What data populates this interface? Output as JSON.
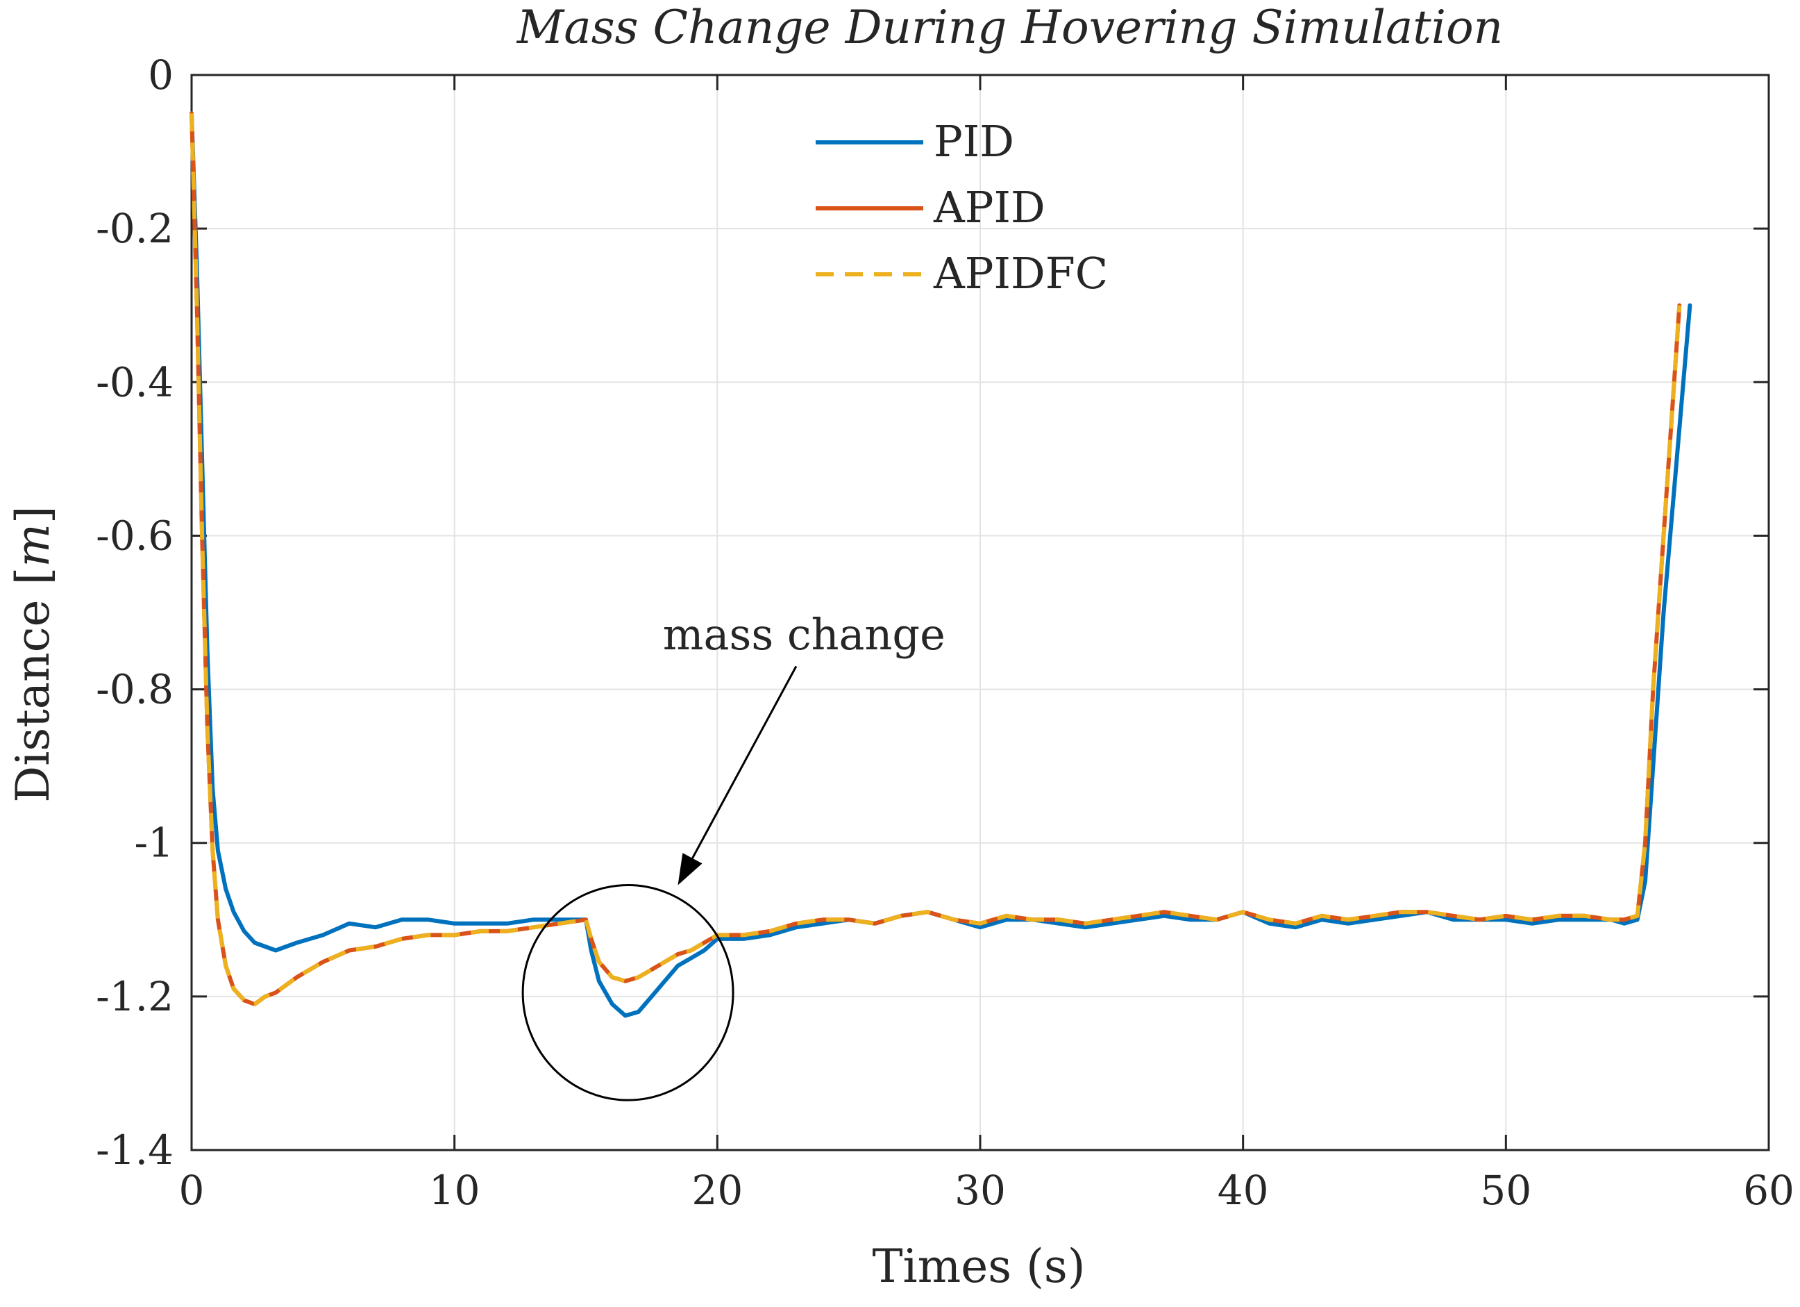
{
  "chart_data": {
    "type": "line",
    "title": "Mass Change During Hovering Simulation",
    "xlabel": "Times (s)",
    "ylabel": "Distance [m]",
    "ylabel_parts": {
      "prefix": "Distance [",
      "unit": "m",
      "suffix": "]"
    },
    "xlim": [
      0,
      60
    ],
    "ylim": [
      -1.4,
      0
    ],
    "xticks": [
      0,
      10,
      20,
      30,
      40,
      50,
      60
    ],
    "xtick_labels": [
      "0",
      "10",
      "20",
      "30",
      "40",
      "50",
      "60"
    ],
    "yticks": [
      0,
      -0.2,
      -0.4,
      -0.6,
      -0.8,
      -1,
      -1.2,
      -1.4
    ],
    "ytick_labels": [
      "0",
      "-0.2",
      "-0.4",
      "-0.6",
      "-0.8",
      "-1",
      "-1.2",
      "-1.4"
    ],
    "grid": true,
    "legend_position": "top-center",
    "series": [
      {
        "name": "PID",
        "color": "#0072BD",
        "dash": "solid",
        "x": [
          0,
          0.2,
          0.4,
          0.6,
          0.8,
          1.0,
          1.3,
          1.6,
          2.0,
          2.4,
          2.8,
          3.2,
          3.6,
          4.0,
          5.0,
          6.0,
          7.0,
          8.0,
          9.0,
          10.0,
          11.0,
          12.0,
          13.0,
          14.0,
          15.0,
          15.2,
          15.5,
          16.0,
          16.5,
          17.0,
          17.5,
          18.0,
          18.5,
          19.0,
          19.5,
          20.0,
          21,
          22,
          23,
          24,
          25,
          26,
          27,
          28,
          29,
          30,
          31,
          32,
          33,
          34,
          35,
          36,
          37,
          38,
          39,
          40,
          41,
          42,
          43,
          44,
          45,
          46,
          47,
          48,
          49,
          50,
          51,
          52,
          53,
          54,
          54.5,
          55.0,
          55.3,
          55.6,
          56.0,
          56.5,
          57.0
        ],
        "y": [
          -0.05,
          -0.25,
          -0.5,
          -0.75,
          -0.93,
          -1.01,
          -1.06,
          -1.09,
          -1.115,
          -1.13,
          -1.135,
          -1.14,
          -1.135,
          -1.13,
          -1.12,
          -1.105,
          -1.11,
          -1.1,
          -1.1,
          -1.105,
          -1.105,
          -1.105,
          -1.1,
          -1.1,
          -1.1,
          -1.14,
          -1.18,
          -1.21,
          -1.225,
          -1.22,
          -1.2,
          -1.18,
          -1.16,
          -1.15,
          -1.14,
          -1.125,
          -1.125,
          -1.12,
          -1.11,
          -1.105,
          -1.1,
          -1.105,
          -1.095,
          -1.09,
          -1.1,
          -1.11,
          -1.1,
          -1.1,
          -1.105,
          -1.11,
          -1.105,
          -1.1,
          -1.095,
          -1.1,
          -1.1,
          -1.09,
          -1.105,
          -1.11,
          -1.1,
          -1.105,
          -1.1,
          -1.095,
          -1.09,
          -1.1,
          -1.1,
          -1.1,
          -1.105,
          -1.1,
          -1.1,
          -1.1,
          -1.105,
          -1.1,
          -1.05,
          -0.9,
          -0.7,
          -0.5,
          -0.3
        ]
      },
      {
        "name": "APID",
        "color": "#D95319",
        "dash": "solid",
        "x": [
          0,
          0.2,
          0.4,
          0.6,
          0.8,
          1.0,
          1.3,
          1.6,
          2.0,
          2.4,
          2.8,
          3.2,
          3.6,
          4.0,
          5.0,
          6.0,
          7.0,
          8.0,
          9.0,
          10.0,
          11.0,
          12.0,
          13.0,
          14.0,
          15.0,
          15.2,
          15.5,
          16.0,
          16.5,
          17.0,
          17.5,
          18.0,
          18.5,
          19.0,
          19.5,
          20.0,
          21,
          22,
          23,
          24,
          25,
          26,
          27,
          28,
          29,
          30,
          31,
          32,
          33,
          34,
          35,
          36,
          37,
          38,
          39,
          40,
          41,
          42,
          43,
          44,
          45,
          46,
          47,
          48,
          49,
          50,
          51,
          52,
          53,
          54,
          54.5,
          55.0,
          55.3,
          55.6,
          56.0,
          56.3,
          56.6
        ],
        "y": [
          -0.05,
          -0.3,
          -0.6,
          -0.85,
          -1.01,
          -1.1,
          -1.16,
          -1.19,
          -1.205,
          -1.21,
          -1.2,
          -1.195,
          -1.185,
          -1.175,
          -1.155,
          -1.14,
          -1.135,
          -1.125,
          -1.12,
          -1.12,
          -1.115,
          -1.115,
          -1.11,
          -1.105,
          -1.1,
          -1.125,
          -1.155,
          -1.175,
          -1.18,
          -1.175,
          -1.165,
          -1.155,
          -1.145,
          -1.14,
          -1.13,
          -1.12,
          -1.12,
          -1.115,
          -1.105,
          -1.1,
          -1.1,
          -1.105,
          -1.095,
          -1.09,
          -1.1,
          -1.105,
          -1.095,
          -1.1,
          -1.1,
          -1.105,
          -1.1,
          -1.095,
          -1.09,
          -1.095,
          -1.1,
          -1.09,
          -1.1,
          -1.105,
          -1.095,
          -1.1,
          -1.095,
          -1.09,
          -1.09,
          -1.095,
          -1.1,
          -1.095,
          -1.1,
          -1.095,
          -1.095,
          -1.1,
          -1.1,
          -1.095,
          -1.0,
          -0.8,
          -0.6,
          -0.45,
          -0.3
        ]
      },
      {
        "name": "APIDFC",
        "color": "#EDB120",
        "dash": "dashed",
        "x": [
          0,
          0.2,
          0.4,
          0.6,
          0.8,
          1.0,
          1.3,
          1.6,
          2.0,
          2.4,
          2.8,
          3.2,
          3.6,
          4.0,
          5.0,
          6.0,
          7.0,
          8.0,
          9.0,
          10.0,
          11.0,
          12.0,
          13.0,
          14.0,
          15.0,
          15.2,
          15.5,
          16.0,
          16.5,
          17.0,
          17.5,
          18.0,
          18.5,
          19.0,
          19.5,
          20.0,
          21,
          22,
          23,
          24,
          25,
          26,
          27,
          28,
          29,
          30,
          31,
          32,
          33,
          34,
          35,
          36,
          37,
          38,
          39,
          40,
          41,
          42,
          43,
          44,
          45,
          46,
          47,
          48,
          49,
          50,
          51,
          52,
          53,
          54,
          54.5,
          55.0,
          55.3,
          55.6,
          56.0,
          56.3,
          56.6
        ],
        "y": [
          -0.05,
          -0.3,
          -0.6,
          -0.85,
          -1.01,
          -1.1,
          -1.16,
          -1.19,
          -1.205,
          -1.21,
          -1.2,
          -1.195,
          -1.185,
          -1.175,
          -1.155,
          -1.14,
          -1.135,
          -1.125,
          -1.12,
          -1.12,
          -1.115,
          -1.115,
          -1.11,
          -1.105,
          -1.1,
          -1.125,
          -1.155,
          -1.175,
          -1.18,
          -1.175,
          -1.165,
          -1.155,
          -1.145,
          -1.14,
          -1.13,
          -1.12,
          -1.12,
          -1.115,
          -1.105,
          -1.1,
          -1.1,
          -1.105,
          -1.095,
          -1.09,
          -1.1,
          -1.105,
          -1.095,
          -1.1,
          -1.1,
          -1.105,
          -1.1,
          -1.095,
          -1.09,
          -1.095,
          -1.1,
          -1.09,
          -1.1,
          -1.105,
          -1.095,
          -1.1,
          -1.095,
          -1.09,
          -1.09,
          -1.095,
          -1.1,
          -1.095,
          -1.1,
          -1.095,
          -1.095,
          -1.1,
          -1.1,
          -1.095,
          -1.0,
          -0.8,
          -0.6,
          -0.45,
          -0.3
        ]
      }
    ],
    "annotations": [
      {
        "text": "mass change",
        "circle_center": [
          16.6,
          -1.195
        ],
        "circle_radius_x": 4.0,
        "circle_radius_y": 0.14,
        "label_anchor": [
          23.3,
          -0.73
        ],
        "arrow_from": [
          23.0,
          -0.77
        ],
        "arrow_to": [
          18.5,
          -1.055
        ]
      }
    ]
  }
}
